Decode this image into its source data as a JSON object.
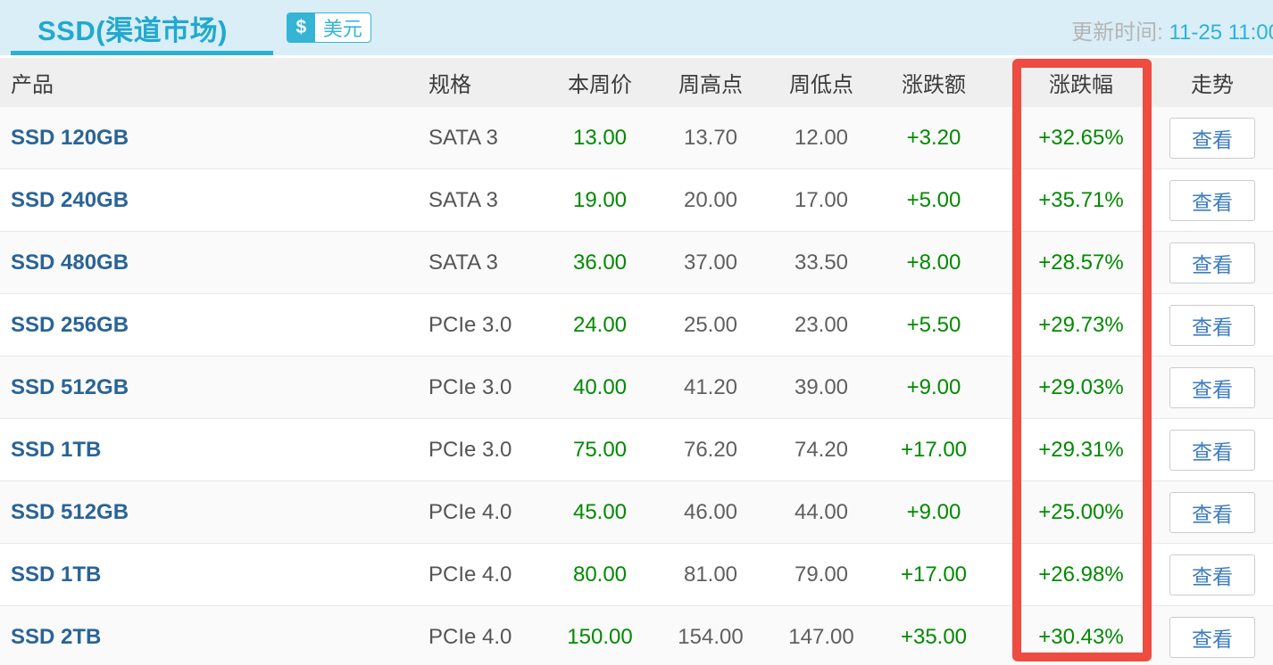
{
  "header": {
    "title": "SSD(渠道市场)",
    "currency_badge": {
      "symbol": "$",
      "label": "美元"
    },
    "update_time_label": "更新时间:",
    "update_time_value": "11-25 11:00"
  },
  "table": {
    "columns": [
      "产品",
      "规格",
      "本周价",
      "周高点",
      "周低点",
      "涨跌额",
      "涨跌幅",
      "走势"
    ],
    "view_button_label": "查看",
    "rows": [
      {
        "product": "SSD 120GB",
        "spec": "SATA 3",
        "week_price": "13.00",
        "week_high": "13.70",
        "week_low": "12.00",
        "change_amount": "+3.20",
        "change_percent": "+32.65%"
      },
      {
        "product": "SSD 240GB",
        "spec": "SATA 3",
        "week_price": "19.00",
        "week_high": "20.00",
        "week_low": "17.00",
        "change_amount": "+5.00",
        "change_percent": "+35.71%"
      },
      {
        "product": "SSD 480GB",
        "spec": "SATA 3",
        "week_price": "36.00",
        "week_high": "37.00",
        "week_low": "33.50",
        "change_amount": "+8.00",
        "change_percent": "+28.57%"
      },
      {
        "product": "SSD 256GB",
        "spec": "PCIe 3.0",
        "week_price": "24.00",
        "week_high": "25.00",
        "week_low": "23.00",
        "change_amount": "+5.50",
        "change_percent": "+29.73%"
      },
      {
        "product": "SSD 512GB",
        "spec": "PCIe 3.0",
        "week_price": "40.00",
        "week_high": "41.20",
        "week_low": "39.00",
        "change_amount": "+9.00",
        "change_percent": "+29.03%"
      },
      {
        "product": "SSD 1TB",
        "spec": "PCIe 3.0",
        "week_price": "75.00",
        "week_high": "76.20",
        "week_low": "74.20",
        "change_amount": "+17.00",
        "change_percent": "+29.31%"
      },
      {
        "product": "SSD 512GB",
        "spec": "PCIe 4.0",
        "week_price": "45.00",
        "week_high": "46.00",
        "week_low": "44.00",
        "change_amount": "+9.00",
        "change_percent": "+25.00%"
      },
      {
        "product": "SSD 1TB",
        "spec": "PCIe 4.0",
        "week_price": "80.00",
        "week_high": "81.00",
        "week_low": "79.00",
        "change_amount": "+17.00",
        "change_percent": "+26.98%"
      },
      {
        "product": "SSD 2TB",
        "spec": "PCIe 4.0",
        "week_price": "150.00",
        "week_high": "154.00",
        "week_low": "147.00",
        "change_amount": "+35.00",
        "change_percent": "+30.43%"
      }
    ]
  },
  "annotation": {
    "highlighted_column": "涨跌幅",
    "highlight_color": "#ee4b41"
  },
  "colors": {
    "band_background": "#d9eef7",
    "accent_teal": "#29b2d6",
    "header_row_background": "#efefef",
    "product_link_blue": "#2a6496",
    "value_green": "#008a00",
    "value_gray": "#5f5f5f",
    "button_text_blue": "#3d7cc0"
  }
}
